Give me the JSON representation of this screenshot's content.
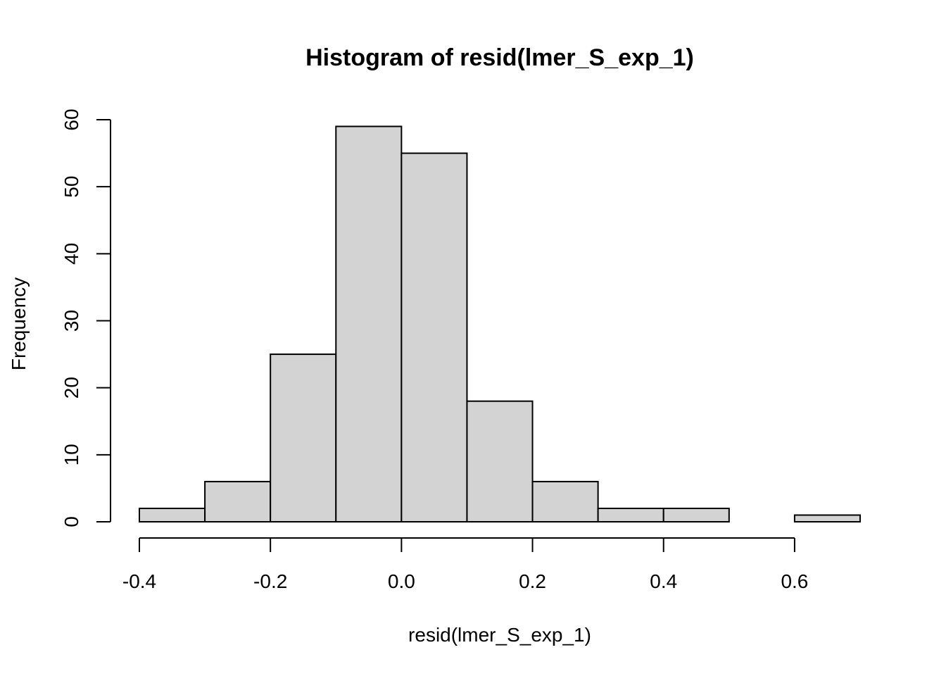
{
  "chart_data": {
    "type": "bar",
    "title": "Histogram of resid(lmer_S_exp_1)",
    "xlabel": "resid(lmer_S_exp_1)",
    "ylabel": "Frequency",
    "bins": [
      {
        "from": -0.4,
        "to": -0.3,
        "count": 2
      },
      {
        "from": -0.3,
        "to": -0.2,
        "count": 6
      },
      {
        "from": -0.2,
        "to": -0.1,
        "count": 25
      },
      {
        "from": -0.1,
        "to": 0.0,
        "count": 59
      },
      {
        "from": 0.0,
        "to": 0.1,
        "count": 55
      },
      {
        "from": 0.1,
        "to": 0.2,
        "count": 18
      },
      {
        "from": 0.2,
        "to": 0.3,
        "count": 6
      },
      {
        "from": 0.3,
        "to": 0.4,
        "count": 2
      },
      {
        "from": 0.4,
        "to": 0.5,
        "count": 2
      },
      {
        "from": 0.5,
        "to": 0.6,
        "count": 0
      },
      {
        "from": 0.6,
        "to": 0.7,
        "count": 1
      }
    ],
    "xlim": [
      -0.4,
      0.7
    ],
    "ylim": [
      0,
      60
    ],
    "x_ticks": [
      -0.4,
      -0.2,
      0.0,
      0.2,
      0.4,
      0.6
    ],
    "x_tick_labels": [
      "-0.4",
      "-0.2",
      "0.0",
      "0.2",
      "0.4",
      "0.6"
    ],
    "y_ticks": [
      0,
      10,
      20,
      30,
      40,
      50,
      60
    ],
    "y_tick_labels": [
      "0",
      "10",
      "20",
      "30",
      "40",
      "50",
      "60"
    ],
    "grid": false,
    "bar_color": "#d3d3d3",
    "border_color": "#000000"
  }
}
